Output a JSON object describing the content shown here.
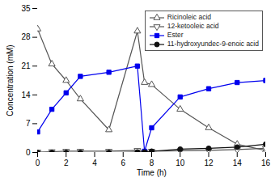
{
  "chart_data": {
    "type": "line",
    "xlabel": "Time (h)",
    "ylabel": "Concentration (mM)",
    "x": [
      0,
      1,
      2,
      3,
      5,
      7,
      7.5,
      8,
      10,
      12,
      14,
      16
    ],
    "series": [
      {
        "name": "Ricinoleic acid",
        "color": "#555555",
        "marker": "triangle-up",
        "values": [
          30.0,
          21.5,
          17.5,
          13.0,
          5.5,
          29.5,
          17.0,
          16.5,
          10.5,
          6.0,
          2.0,
          0.5
        ]
      },
      {
        "name": "12-ketooleic acid",
        "color": "#555555",
        "marker": "triangle-down",
        "values": [
          0.1,
          0.2,
          0.3,
          0.3,
          0.3,
          0.5,
          0.1,
          0.3,
          0.4,
          0.5,
          0.7,
          1.0
        ]
      },
      {
        "name": "Ester",
        "color": "#0000EE",
        "marker": "square",
        "values": [
          5.0,
          10.5,
          14.5,
          18.5,
          19.5,
          21.0,
          0.3,
          6.0,
          13.5,
          15.5,
          17.0,
          17.5
        ]
      },
      {
        "name": "11-hydroxyundec-9-enoic acid",
        "color": "#111111",
        "marker": "circle",
        "values": [
          0.0,
          0.0,
          0.0,
          0.0,
          0.0,
          0.1,
          0.1,
          0.3,
          0.8,
          1.0,
          1.3,
          2.0
        ]
      }
    ],
    "xlim": [
      0,
      16
    ],
    "ylim": [
      0,
      35
    ],
    "xticks": [
      0,
      2,
      4,
      6,
      8,
      10,
      12,
      14,
      16
    ],
    "yticks": [
      0,
      7,
      14,
      21,
      28,
      35
    ],
    "grid": false,
    "legend": "upper right"
  }
}
